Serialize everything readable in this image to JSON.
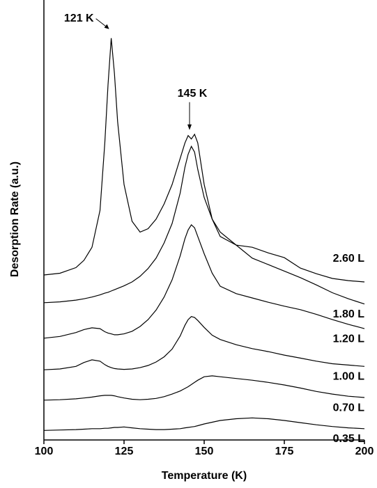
{
  "chart_data": {
    "type": "line",
    "xlabel": "Temperature (K)",
    "ylabel": "Desorption Rate (a.u.)",
    "xlim": [
      100,
      200
    ],
    "xticks": [
      100,
      125,
      150,
      175,
      200
    ],
    "ylim": [
      0,
      100
    ],
    "x": [
      100,
      105,
      110,
      112.5,
      115,
      117.5,
      119,
      120,
      121,
      122,
      123,
      125,
      127.5,
      130,
      132.5,
      135,
      137.5,
      140,
      142.5,
      144,
      145,
      146,
      147,
      148,
      150,
      152.5,
      155,
      160,
      165,
      170,
      175,
      180,
      185,
      190,
      195,
      200
    ],
    "series": [
      {
        "name": "2.60 L",
        "color": "#000000",
        "values": [
          38.1,
          38.5,
          39.8,
          41.5,
          44.5,
          53.0,
          68.6,
          82.0,
          92.8,
          84.7,
          73.5,
          59.0,
          50.5,
          48.0,
          48.8,
          51.0,
          54.5,
          59.0,
          65.0,
          68.6,
          70.3,
          69.5,
          70.6,
          68.6,
          59.0,
          51.0,
          47.0,
          45.0,
          44.5,
          43.2,
          42.1,
          39.7,
          38.4,
          37.3,
          36.8,
          36.5
        ]
      },
      {
        "name": "1.80 L",
        "color": "#000000",
        "values": [
          31.7,
          31.9,
          32.3,
          32.6,
          33.0,
          33.5,
          33.9,
          34.1,
          34.4,
          34.7,
          35.0,
          35.6,
          36.5,
          37.8,
          39.6,
          42.0,
          45.5,
          50.0,
          57.0,
          63.0,
          66.0,
          67.8,
          66.5,
          62.5,
          56.0,
          51.0,
          48.0,
          45.0,
          42.0,
          40.5,
          39.0,
          37.5,
          35.8,
          34.0,
          32.6,
          31.4
        ]
      },
      {
        "name": "1.20 L",
        "color": "#000000",
        "values": [
          23.5,
          23.9,
          24.8,
          25.5,
          25.9,
          25.7,
          25.0,
          24.7,
          24.5,
          24.3,
          24.3,
          24.5,
          25.1,
          26.2,
          27.8,
          30.0,
          33.0,
          37.0,
          42.5,
          46.5,
          48.5,
          49.7,
          49.0,
          47.0,
          43.0,
          38.5,
          35.5,
          33.8,
          32.8,
          31.8,
          30.9,
          30.1,
          29.0,
          27.8,
          26.7,
          25.7
        ]
      },
      {
        "name": "1.00 L",
        "color": "#000000",
        "values": [
          16.2,
          16.4,
          17.0,
          17.9,
          18.5,
          18.2,
          17.4,
          17.0,
          16.7,
          16.5,
          16.4,
          16.3,
          16.4,
          16.7,
          17.2,
          18.0,
          19.2,
          21.0,
          24.0,
          26.5,
          27.8,
          28.5,
          28.3,
          27.6,
          26.0,
          24.2,
          23.2,
          22.0,
          21.1,
          20.4,
          19.6,
          18.9,
          18.2,
          17.6,
          17.3,
          17.0
        ]
      },
      {
        "name": "0.70 L",
        "color": "#000000",
        "values": [
          9.2,
          9.3,
          9.5,
          9.7,
          9.9,
          10.2,
          10.3,
          10.3,
          10.3,
          10.2,
          10.0,
          9.7,
          9.4,
          9.3,
          9.4,
          9.6,
          10.0,
          10.6,
          11.3,
          11.9,
          12.3,
          12.8,
          13.3,
          13.8,
          14.6,
          14.8,
          14.6,
          14.2,
          13.8,
          13.3,
          12.7,
          12.0,
          11.2,
          10.6,
          10.1,
          9.8
        ]
      },
      {
        "name": "0.35 L",
        "color": "#000000",
        "values": [
          2.2,
          2.3,
          2.4,
          2.5,
          2.6,
          2.6,
          2.7,
          2.7,
          2.8,
          2.9,
          2.9,
          3.0,
          2.8,
          2.6,
          2.5,
          2.4,
          2.4,
          2.5,
          2.6,
          2.8,
          2.9,
          3.0,
          3.1,
          3.3,
          3.7,
          4.1,
          4.5,
          4.9,
          5.1,
          4.9,
          4.5,
          4.0,
          3.5,
          3.1,
          2.8,
          2.6
        ]
      }
    ],
    "annotations": [
      {
        "text": "121 K",
        "x": 121
      },
      {
        "text": "145 K",
        "x": 145
      }
    ]
  }
}
